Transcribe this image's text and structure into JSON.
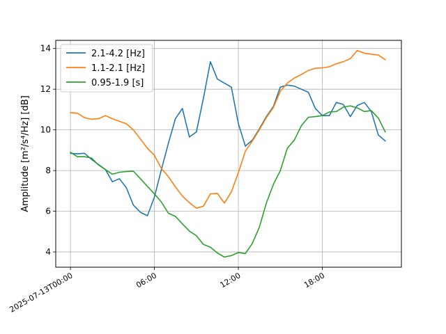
{
  "chart_data": {
    "type": "line",
    "ylabel": "Amplitude [m²/s⁴/Hz] [dB]",
    "xlabel": "",
    "x_ticks": [
      "2025-07-13T00:00",
      "06:00",
      "12:00",
      "18:00"
    ],
    "y_ticks": [
      "4",
      "6",
      "8",
      "10",
      "12",
      "14"
    ],
    "xlim_hours": [
      -1.05,
      23.65
    ],
    "ylim": [
      3.25,
      14.4
    ],
    "grid": true,
    "legend_placement": "top-left",
    "series": [
      {
        "name": "2.1-4.2 [Hz]",
        "color": "#1f77b4",
        "x": [
          0,
          0.5,
          1,
          1.5,
          2,
          2.5,
          3,
          3.5,
          4,
          4.5,
          5,
          5.5,
          6,
          6.5,
          7,
          7.5,
          8,
          8.5,
          9,
          9.5,
          10,
          10.5,
          11,
          11.5,
          12,
          12.5,
          13,
          13.5,
          14,
          14.5,
          15,
          15.5,
          16,
          16.5,
          17,
          17.5,
          18,
          18.5,
          19,
          19.5,
          20,
          20.5,
          21,
          21.5,
          22,
          22.5
        ],
        "y": [
          8.85,
          8.82,
          8.85,
          8.55,
          8.3,
          8.05,
          7.45,
          7.6,
          7.15,
          6.3,
          5.95,
          5.78,
          6.7,
          8.05,
          9.35,
          10.55,
          11.05,
          9.65,
          9.9,
          11.55,
          13.35,
          12.5,
          12.3,
          12.1,
          10.3,
          9.2,
          9.5,
          10.05,
          10.65,
          11.15,
          12.1,
          12.2,
          12.15,
          12.0,
          11.85,
          11.05,
          10.7,
          10.7,
          11.35,
          11.25,
          10.65,
          11.2,
          11.35,
          10.9,
          9.75,
          9.45
        ]
      },
      {
        "name": "1.1-2.1 [Hz]",
        "color": "#ff7f0e",
        "x": [
          0,
          0.5,
          1,
          1.5,
          2,
          2.5,
          3,
          3.5,
          4,
          4.5,
          5,
          5.5,
          6,
          6.5,
          7,
          7.5,
          8,
          8.5,
          9,
          9.5,
          10,
          10.5,
          11,
          11.5,
          12,
          12.5,
          13,
          13.5,
          14,
          14.5,
          15,
          15.5,
          16,
          16.5,
          17,
          17.5,
          18,
          18.5,
          19,
          19.5,
          20,
          20.5,
          21,
          21.5,
          22,
          22.5
        ],
        "y": [
          10.85,
          10.82,
          10.6,
          10.52,
          10.55,
          10.7,
          10.55,
          10.42,
          10.3,
          10.0,
          9.55,
          9.1,
          8.75,
          8.1,
          7.7,
          7.2,
          6.75,
          6.42,
          6.15,
          6.25,
          6.85,
          6.88,
          6.4,
          6.95,
          7.9,
          8.95,
          9.45,
          10.0,
          10.6,
          11.1,
          11.9,
          12.3,
          12.55,
          12.72,
          12.92,
          13.03,
          13.05,
          13.1,
          13.25,
          13.35,
          13.5,
          13.9,
          13.77,
          13.72,
          13.68,
          13.45
        ]
      },
      {
        "name": "0.95-1.9 [s]",
        "color": "#2ca02c",
        "x": [
          0,
          0.5,
          1,
          1.5,
          2,
          2.5,
          3,
          3.5,
          4,
          4.5,
          5,
          5.5,
          6,
          6.5,
          7,
          7.5,
          8,
          8.5,
          9,
          9.5,
          10,
          10.5,
          11,
          11.5,
          12,
          12.5,
          13,
          13.5,
          14,
          14.5,
          15,
          15.5,
          16,
          16.5,
          17,
          17.5,
          18,
          18.5,
          19,
          19.5,
          20,
          20.5,
          21,
          21.5,
          22,
          22.5
        ],
        "y": [
          8.9,
          8.68,
          8.68,
          8.62,
          8.28,
          8.05,
          7.82,
          7.92,
          7.95,
          7.97,
          7.6,
          7.22,
          6.85,
          6.45,
          5.9,
          5.75,
          5.38,
          5.02,
          4.8,
          4.37,
          4.23,
          3.95,
          3.75,
          3.82,
          3.97,
          3.92,
          4.42,
          5.22,
          6.4,
          7.32,
          8.0,
          9.1,
          9.5,
          10.2,
          10.62,
          10.65,
          10.7,
          10.88,
          10.9,
          11.12,
          11.18,
          11.08,
          10.9,
          10.95,
          10.58,
          9.9
        ]
      }
    ]
  }
}
